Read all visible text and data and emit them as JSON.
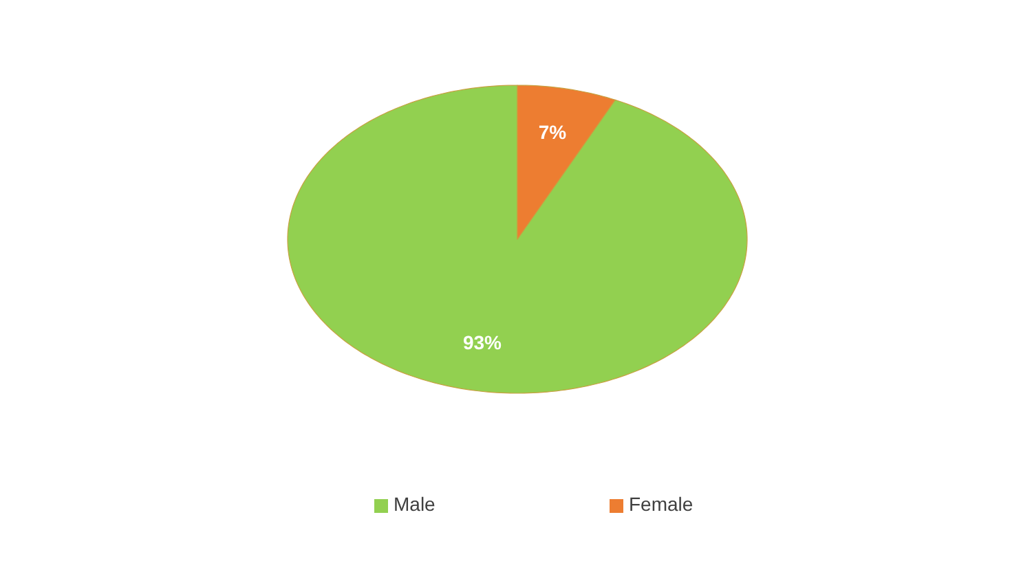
{
  "chart_data": {
    "type": "pie",
    "categories": [
      "Male",
      "Female"
    ],
    "values": [
      93,
      7
    ],
    "colors": [
      "#92d050",
      "#ed7d31"
    ],
    "value_labels": [
      "93%",
      "7%"
    ],
    "legend": "bottom"
  }
}
